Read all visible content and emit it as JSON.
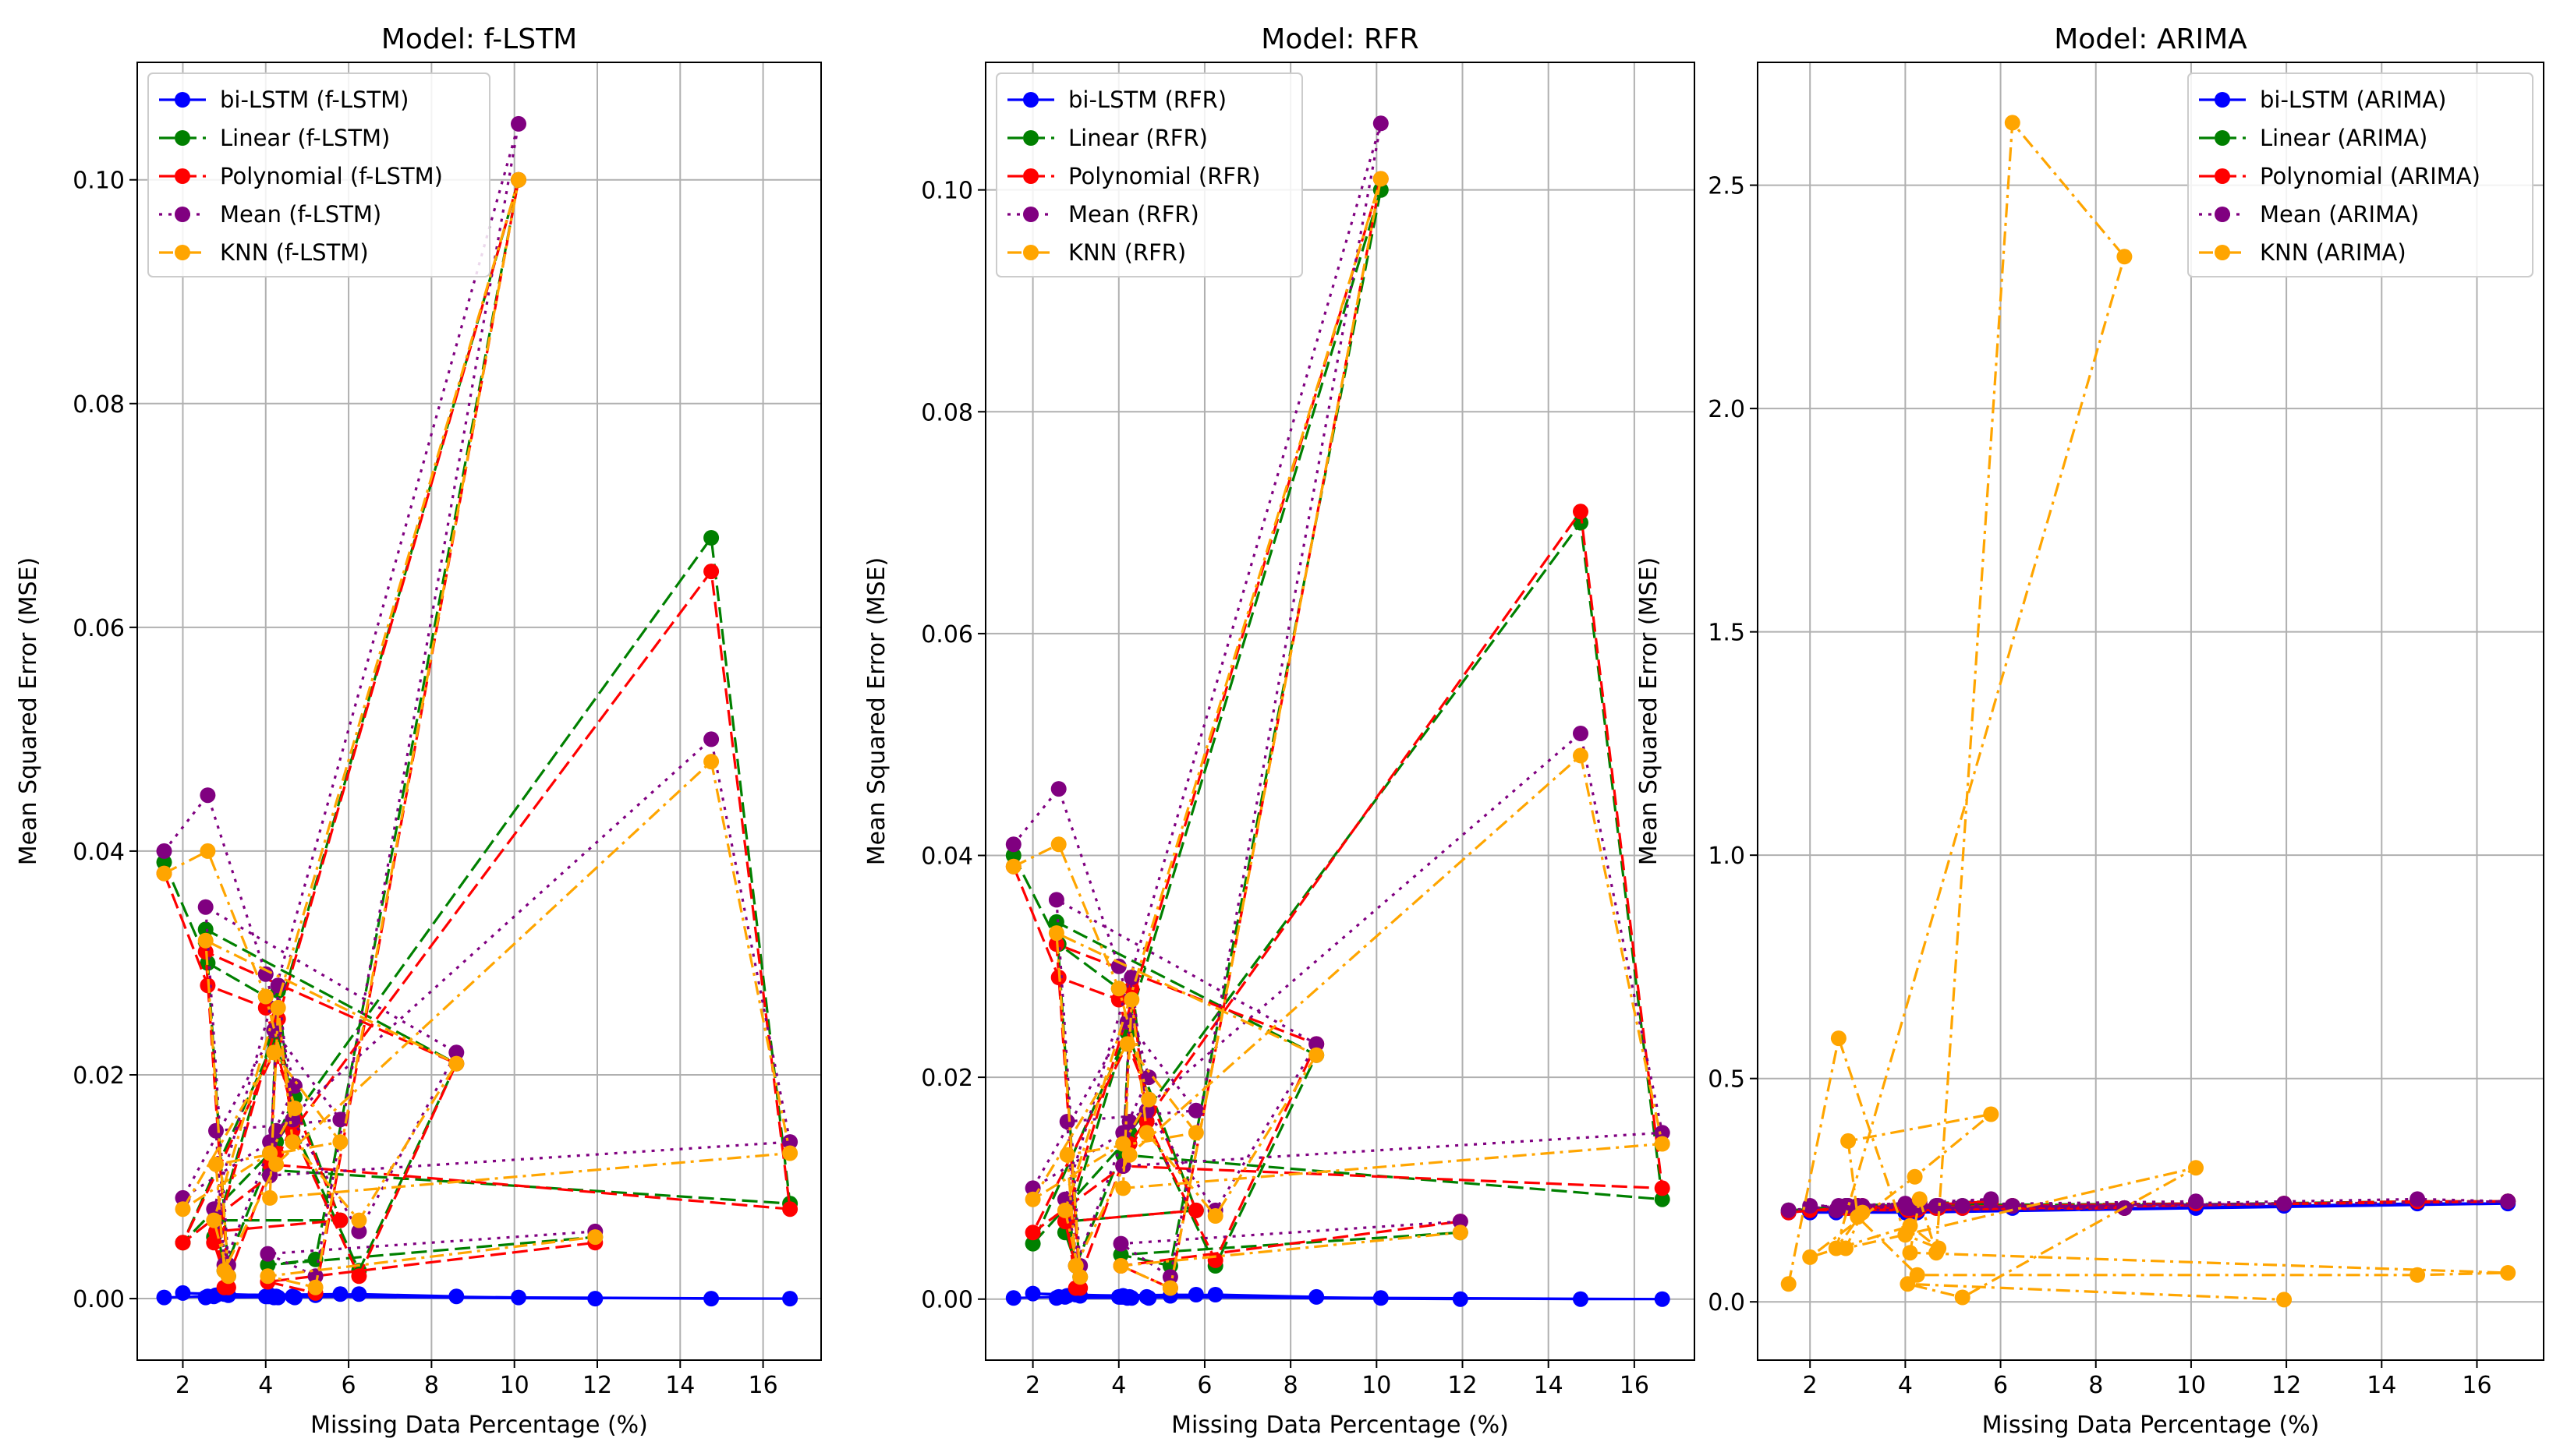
{
  "figure": {
    "xlabel": "Missing Data Percentage (%)",
    "ylabel": "Mean Squared Error (MSE)"
  },
  "colors": {
    "bi_lstm": "#0000ff",
    "linear": "#008000",
    "polynomial": "#ff0000",
    "mean": "#800080",
    "knn": "#ffa500",
    "grid": "#b0b0b0"
  },
  "chart_data": [
    {
      "type": "line",
      "title": "Model: f-LSTM",
      "xlabel": "Missing Data Percentage (%)",
      "ylabel": "Mean Squared Error (MSE)",
      "xlim": [
        0.9,
        17.4
      ],
      "ylim": [
        -0.0055,
        0.1105
      ],
      "xticks": [
        2,
        4,
        6,
        8,
        10,
        12,
        14,
        16
      ],
      "xtick_labels": [
        "2",
        "4",
        "6",
        "8",
        "10",
        "12",
        "14",
        "16"
      ],
      "yticks": [
        0,
        0.02,
        0.04,
        0.06,
        0.08,
        0.1
      ],
      "ytick_labels": [
        "0.00",
        "0.02",
        "0.04",
        "0.06",
        "0.08",
        "0.10"
      ],
      "grid": true,
      "legend_position": "upper-left",
      "x": [
        1.55,
        2.6,
        4.0,
        4.7,
        4.1,
        2.0,
        4.2,
        5.8,
        2.8,
        3.0,
        4.25,
        14.75,
        16.65,
        4.1,
        4.3,
        4.65,
        6.25,
        8.6,
        2.55,
        3.1,
        2.75,
        10.1,
        5.2,
        4.05,
        11.95
      ],
      "series": [
        {
          "name": "bi-LSTM (f-LSTM)",
          "key": "bi_lstm",
          "style": "solid",
          "values": [
            0.0001,
            0.0002,
            0.0002,
            0.0001,
            0.0003,
            0.0005,
            0.0001,
            0.0004,
            0.0003,
            0.0004,
            0.0002,
            0.0,
            0.0,
            0.0002,
            0.0001,
            0.0002,
            0.0004,
            0.0002,
            0.0001,
            0.0003,
            0.0002,
            0.0001,
            0.0003,
            0.0002,
            0.0
          ]
        },
        {
          "name": "Linear (f-LSTM)",
          "key": "linear",
          "style": "dashed",
          "values": [
            0.039,
            0.03,
            0.027,
            0.018,
            0.013,
            0.005,
            0.023,
            0.007,
            0.007,
            0.0025,
            0.014,
            0.068,
            0.0085,
            0.0115,
            0.0275,
            0.0155,
            0.0025,
            0.021,
            0.033,
            0.002,
            0.0055,
            0.1,
            0.0035,
            0.003,
            0.0055
          ]
        },
        {
          "name": "Polynomial (f-LSTM)",
          "key": "polynomial",
          "style": "dashed",
          "values": [
            0.038,
            0.028,
            0.026,
            0.016,
            0.011,
            0.005,
            0.022,
            0.007,
            0.006,
            0.001,
            0.013,
            0.065,
            0.008,
            0.012,
            0.025,
            0.015,
            0.002,
            0.021,
            0.031,
            0.001,
            0.005,
            0.1,
            0.0005,
            0.0015,
            0.005
          ]
        },
        {
          "name": "Mean (f-LSTM)",
          "key": "mean",
          "style": "dotted",
          "values": [
            0.04,
            0.045,
            0.029,
            0.019,
            0.014,
            0.009,
            0.024,
            0.016,
            0.015,
            0.003,
            0.015,
            0.05,
            0.014,
            0.011,
            0.028,
            0.016,
            0.006,
            0.022,
            0.035,
            0.003,
            0.008,
            0.105,
            0.002,
            0.004,
            0.006
          ]
        },
        {
          "name": "KNN (f-LSTM)",
          "key": "knn",
          "style": "dashdot",
          "values": [
            0.038,
            0.04,
            0.027,
            0.017,
            0.013,
            0.008,
            0.022,
            0.014,
            0.012,
            0.0025,
            0.012,
            0.048,
            0.013,
            0.009,
            0.026,
            0.014,
            0.007,
            0.021,
            0.032,
            0.002,
            0.007,
            0.1,
            0.001,
            0.002,
            0.0055
          ]
        }
      ]
    },
    {
      "type": "line",
      "title": "Model: RFR",
      "xlabel": "Missing Data Percentage (%)",
      "ylabel": "Mean Squared Error (MSE)",
      "xlim": [
        0.9,
        17.4
      ],
      "ylim": [
        -0.0055,
        0.1115
      ],
      "xticks": [
        2,
        4,
        6,
        8,
        10,
        12,
        14,
        16
      ],
      "xtick_labels": [
        "2",
        "4",
        "6",
        "8",
        "10",
        "12",
        "14",
        "16"
      ],
      "yticks": [
        0,
        0.02,
        0.04,
        0.06,
        0.08,
        0.1
      ],
      "ytick_labels": [
        "0.00",
        "0.02",
        "0.04",
        "0.06",
        "0.08",
        "0.10"
      ],
      "grid": true,
      "legend_position": "upper-left",
      "x": [
        1.55,
        2.6,
        4.0,
        4.7,
        4.1,
        2.0,
        4.2,
        5.8,
        2.8,
        3.0,
        4.25,
        14.75,
        16.65,
        4.1,
        4.3,
        4.65,
        6.25,
        8.6,
        2.55,
        3.1,
        2.75,
        10.1,
        5.2,
        4.05,
        11.95
      ],
      "series": [
        {
          "name": "bi-LSTM (RFR)",
          "key": "bi_lstm",
          "style": "solid",
          "values": [
            0.0001,
            0.0002,
            0.0002,
            0.0001,
            0.0003,
            0.0005,
            0.0001,
            0.0004,
            0.0003,
            0.0004,
            0.0002,
            0.0,
            0.0,
            0.0002,
            0.0001,
            0.0002,
            0.0004,
            0.0002,
            0.0001,
            0.0003,
            0.0002,
            0.0001,
            0.0003,
            0.0002,
            0.0
          ]
        },
        {
          "name": "Linear (RFR)",
          "key": "linear",
          "style": "dashed",
          "values": [
            0.04,
            0.032,
            0.028,
            0.018,
            0.014,
            0.005,
            0.024,
            0.008,
            0.007,
            0.003,
            0.015,
            0.07,
            0.009,
            0.013,
            0.029,
            0.016,
            0.003,
            0.022,
            0.034,
            0.002,
            0.006,
            0.1,
            0.003,
            0.004,
            0.006
          ]
        },
        {
          "name": "Polynomial (RFR)",
          "key": "polynomial",
          "style": "dashed",
          "values": [
            0.039,
            0.029,
            0.027,
            0.017,
            0.012,
            0.006,
            0.023,
            0.008,
            0.007,
            0.001,
            0.014,
            0.071,
            0.01,
            0.012,
            0.028,
            0.016,
            0.0035,
            0.023,
            0.032,
            0.001,
            0.007,
            0.101,
            0.001,
            0.003,
            0.007
          ]
        },
        {
          "name": "Mean (RFR)",
          "key": "mean",
          "style": "dotted",
          "values": [
            0.041,
            0.046,
            0.03,
            0.02,
            0.015,
            0.01,
            0.025,
            0.017,
            0.016,
            0.003,
            0.016,
            0.051,
            0.015,
            0.012,
            0.029,
            0.017,
            0.008,
            0.023,
            0.036,
            0.003,
            0.009,
            0.106,
            0.002,
            0.005,
            0.007
          ]
        },
        {
          "name": "KNN (RFR)",
          "key": "knn",
          "style": "dashdot",
          "values": [
            0.039,
            0.041,
            0.028,
            0.018,
            0.014,
            0.009,
            0.023,
            0.015,
            0.013,
            0.003,
            0.013,
            0.049,
            0.014,
            0.01,
            0.027,
            0.015,
            0.0075,
            0.022,
            0.033,
            0.002,
            0.008,
            0.101,
            0.001,
            0.003,
            0.006
          ]
        }
      ]
    },
    {
      "type": "line",
      "title": "Model: ARIMA",
      "xlabel": "Missing Data Percentage (%)",
      "ylabel": "Mean Squared Error (MSE)",
      "xlim": [
        0.9,
        17.4
      ],
      "ylim": [
        -0.1305,
        2.775
      ],
      "xticks": [
        2,
        4,
        6,
        8,
        10,
        12,
        14,
        16
      ],
      "xtick_labels": [
        "2",
        "4",
        "6",
        "8",
        "10",
        "12",
        "14",
        "16"
      ],
      "yticks": [
        0,
        0.5,
        1.0,
        1.5,
        2.0,
        2.5
      ],
      "ytick_labels": [
        "0.0",
        "0.5",
        "1.0",
        "1.5",
        "2.0",
        "2.5"
      ],
      "grid": true,
      "legend_position": "upper-right",
      "x": [
        1.55,
        2.6,
        4.0,
        4.7,
        4.1,
        2.0,
        4.2,
        5.8,
        2.8,
        3.0,
        4.25,
        14.75,
        16.65,
        4.1,
        4.3,
        4.65,
        6.25,
        8.6,
        2.55,
        3.1,
        2.75,
        10.1,
        5.2,
        4.05,
        11.95
      ],
      "series": [
        {
          "name": "bi-LSTM (ARIMA)",
          "key": "bi_lstm",
          "style": "solid",
          "values": [
            0.2,
            0.21,
            0.2,
            0.21,
            0.2,
            0.2,
            0.21,
            0.22,
            0.21,
            0.21,
            0.2,
            0.22,
            0.22,
            0.2,
            0.21,
            0.21,
            0.21,
            0.21,
            0.2,
            0.21,
            0.21,
            0.21,
            0.21,
            0.2,
            0.215
          ]
        },
        {
          "name": "Linear (ARIMA)",
          "key": "linear",
          "style": "dashed",
          "values": [
            0.205,
            0.21,
            0.21,
            0.21,
            0.205,
            0.21,
            0.21,
            0.225,
            0.215,
            0.215,
            0.21,
            0.225,
            0.225,
            0.21,
            0.21,
            0.215,
            0.215,
            0.21,
            0.205,
            0.21,
            0.215,
            0.22,
            0.215,
            0.205,
            0.22
          ]
        },
        {
          "name": "Polynomial (ARIMA)",
          "key": "polynomial",
          "style": "dashed",
          "values": [
            0.2,
            0.21,
            0.215,
            0.21,
            0.205,
            0.205,
            0.215,
            0.225,
            0.21,
            0.215,
            0.205,
            0.225,
            0.225,
            0.21,
            0.21,
            0.21,
            0.215,
            0.21,
            0.205,
            0.215,
            0.21,
            0.22,
            0.21,
            0.205,
            0.22
          ]
        },
        {
          "name": "Mean (ARIMA)",
          "key": "mean",
          "style": "dotted",
          "values": [
            0.205,
            0.215,
            0.22,
            0.215,
            0.21,
            0.215,
            0.215,
            0.23,
            0.215,
            0.215,
            0.21,
            0.23,
            0.225,
            0.21,
            0.215,
            0.215,
            0.215,
            0.21,
            0.205,
            0.215,
            0.215,
            0.225,
            0.215,
            0.21,
            0.22
          ]
        },
        {
          "name": "KNN (ARIMA)",
          "key": "knn",
          "style": "dashdot",
          "values": [
            0.04,
            0.59,
            0.15,
            0.12,
            0.17,
            0.1,
            0.28,
            0.42,
            0.36,
            0.19,
            0.06,
            0.06,
            0.065,
            0.11,
            0.23,
            0.11,
            2.64,
            2.34,
            0.12,
            0.2,
            0.12,
            0.3,
            0.01,
            0.04,
            0.005
          ]
        }
      ]
    }
  ]
}
